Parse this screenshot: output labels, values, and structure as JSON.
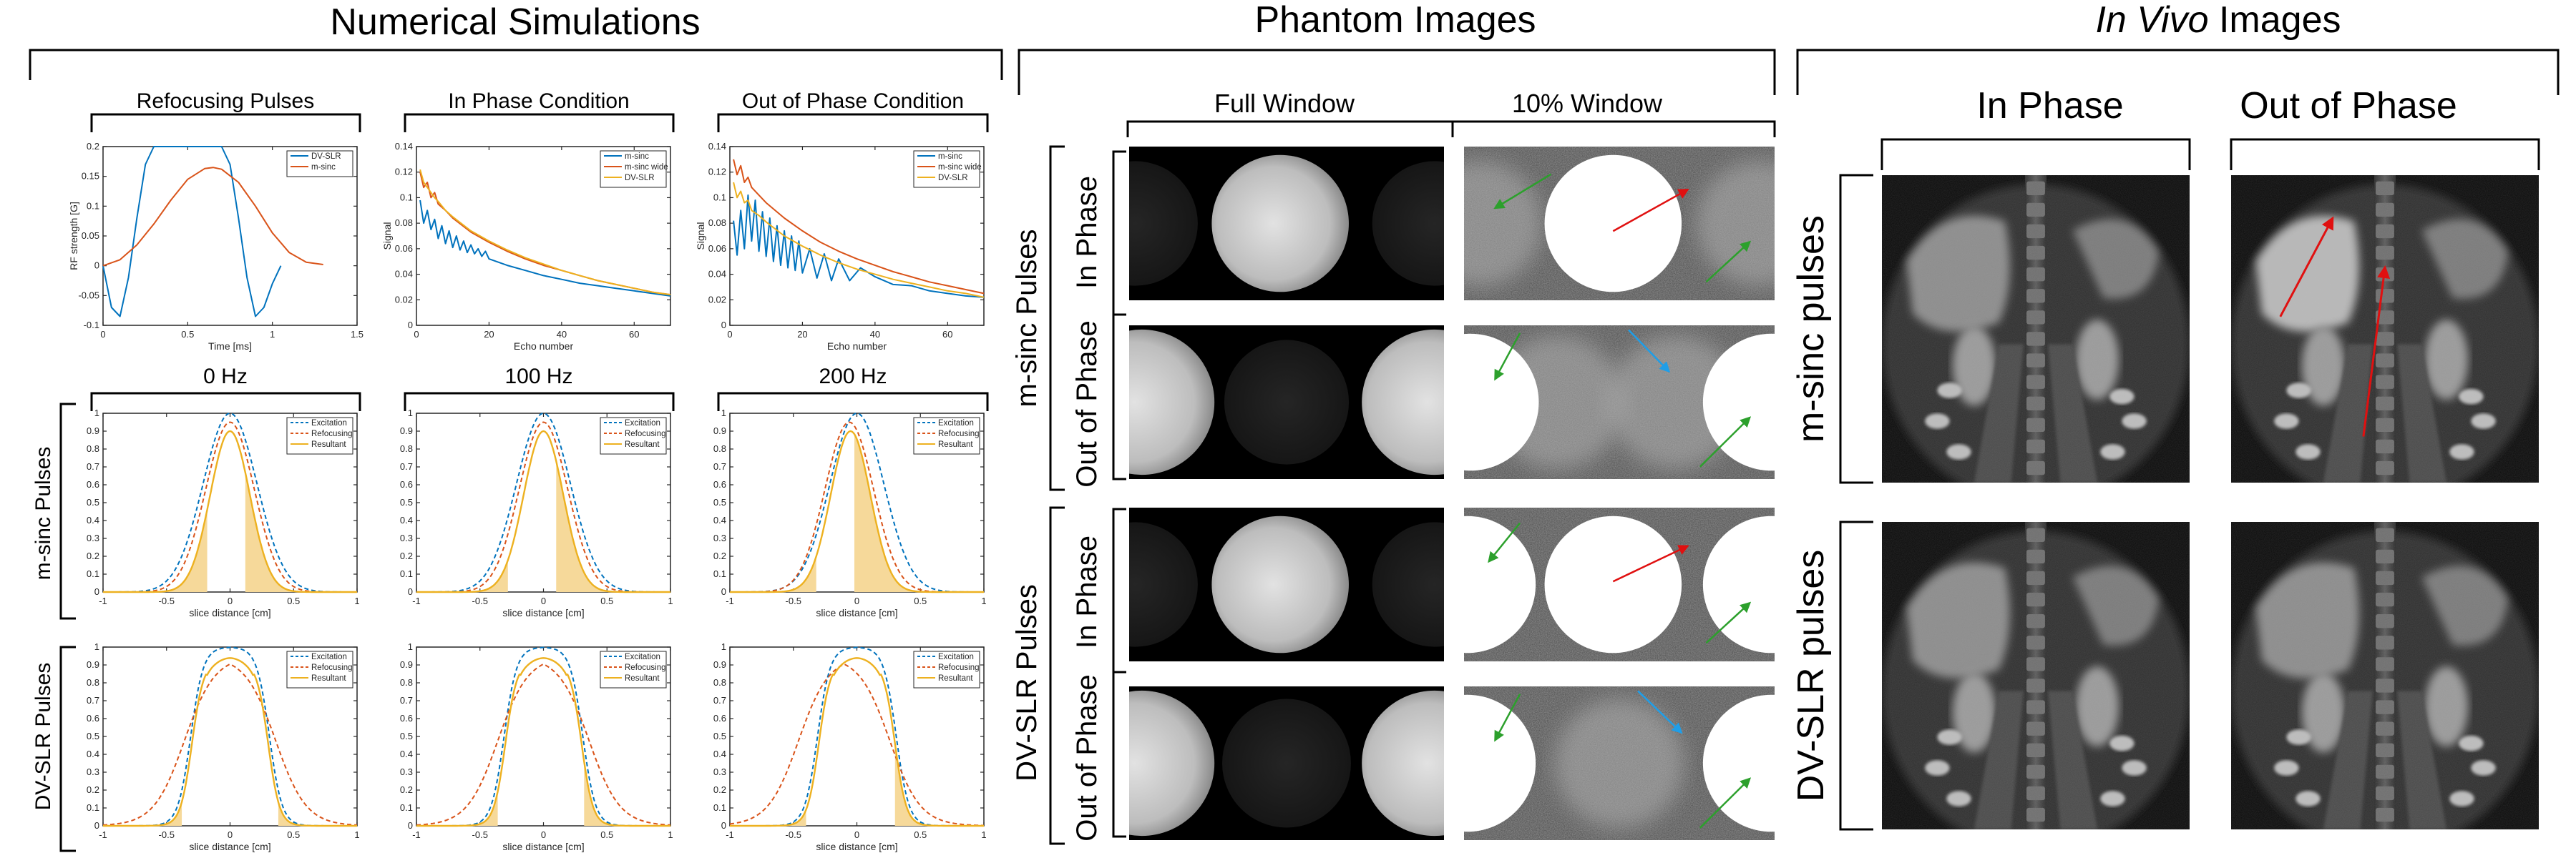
{
  "headers": {
    "numerical": "Numerical Simulations",
    "phantom": "Phantom Images",
    "invivo_italic": "In Vivo",
    "invivo_rest": " Images"
  },
  "sim": {
    "top_titles": [
      "Refocusing Pulses",
      "In Phase Condition",
      "Out of Phase Condition"
    ],
    "freq_titles": [
      "0 Hz",
      "100 Hz",
      "200 Hz"
    ],
    "row_labels": [
      "m-sinc Pulses",
      "DV-SLR Pulses"
    ]
  },
  "phantom": {
    "col_labels": [
      "Full Window",
      "10% Window"
    ],
    "group_labels": [
      "m-sinc Pulses",
      "DV-SLR Pulses"
    ],
    "sub_labels": [
      "In Phase",
      "Out of Phase",
      "In Phase",
      "Out of Phase"
    ]
  },
  "invivo": {
    "col_labels": [
      "In Phase",
      "Out of Phase"
    ],
    "row_labels": [
      "m-sinc pulses",
      "DV-SLR pulses"
    ]
  },
  "colors": {
    "blue": "#0072bd",
    "orange": "#d95319",
    "yellow": "#edb120",
    "fill": "#f6d99a",
    "green": "#2ca02c",
    "red": "#e01010",
    "cyan": "#1f9ee8"
  },
  "chart_data": [
    {
      "type": "line",
      "title": "Refocusing Pulses",
      "xlabel": "Time [ms]",
      "ylabel": "RF strength [G]",
      "xlim": [
        0,
        1.5
      ],
      "ylim": [
        -0.1,
        0.2
      ],
      "xticks": [
        0,
        0.5,
        1,
        1.5
      ],
      "yticks": [
        -0.1,
        -0.05,
        0,
        0.05,
        0.1,
        0.15,
        0.2
      ],
      "xtick_labels": [
        "0",
        "0.5",
        "1",
        "1.5"
      ],
      "ytick_labels": [
        "-0.1",
        "-0.05",
        "0",
        "0.05",
        "0.1",
        "0.15",
        "0.2"
      ],
      "legend": [
        "DV-SLR",
        "m-sinc"
      ],
      "legend_position": "top-right",
      "series": [
        {
          "name": "DV-SLR",
          "color": "#0072bd",
          "x": [
            0,
            0.05,
            0.1,
            0.15,
            0.2,
            0.25,
            0.3,
            0.4,
            0.5,
            0.6,
            0.7,
            0.75,
            0.8,
            0.85,
            0.9,
            0.95,
            1.0,
            1.05
          ],
          "y": [
            0,
            -0.07,
            -0.085,
            -0.02,
            0.08,
            0.17,
            0.2,
            0.2,
            0.2,
            0.2,
            0.2,
            0.17,
            0.08,
            -0.02,
            -0.085,
            -0.07,
            -0.03,
            0
          ]
        },
        {
          "name": "m-sinc",
          "color": "#d95319",
          "x": [
            0,
            0.1,
            0.2,
            0.3,
            0.4,
            0.5,
            0.6,
            0.65,
            0.7,
            0.8,
            0.9,
            1.0,
            1.1,
            1.2,
            1.3
          ],
          "y": [
            0,
            0.01,
            0.035,
            0.07,
            0.11,
            0.145,
            0.163,
            0.165,
            0.162,
            0.14,
            0.1,
            0.055,
            0.022,
            0.006,
            0.002
          ]
        }
      ]
    },
    {
      "type": "line",
      "title": "In Phase Condition",
      "xlabel": "Echo number",
      "ylabel": "Signal",
      "xlim": [
        0,
        70
      ],
      "ylim": [
        0,
        0.14
      ],
      "xticks": [
        0,
        20,
        40,
        60
      ],
      "yticks": [
        0,
        0.02,
        0.04,
        0.06,
        0.08,
        0.1,
        0.12,
        0.14
      ],
      "xtick_labels": [
        "0",
        "20",
        "40",
        "60"
      ],
      "ytick_labels": [
        "0",
        "0.02",
        "0.04",
        "0.06",
        "0.08",
        "0.1",
        "0.12",
        "0.14"
      ],
      "legend": [
        "m-sinc",
        "m-sinc wide",
        "DV-SLR"
      ],
      "legend_position": "top-right",
      "series": [
        {
          "name": "m-sinc",
          "color": "#0072bd",
          "x": [
            1,
            2,
            3,
            4,
            5,
            6,
            7,
            8,
            9,
            10,
            11,
            12,
            13,
            14,
            15,
            16,
            17,
            18,
            19,
            20,
            25,
            30,
            35,
            40,
            45,
            50,
            55,
            60,
            65,
            70
          ],
          "y": [
            0.098,
            0.08,
            0.09,
            0.075,
            0.083,
            0.068,
            0.078,
            0.064,
            0.074,
            0.061,
            0.07,
            0.059,
            0.066,
            0.057,
            0.063,
            0.056,
            0.06,
            0.054,
            0.058,
            0.052,
            0.047,
            0.043,
            0.039,
            0.036,
            0.033,
            0.031,
            0.029,
            0.027,
            0.025,
            0.023
          ]
        },
        {
          "name": "m-sinc wide",
          "color": "#d95319",
          "x": [
            1,
            2,
            3,
            4,
            5,
            6,
            8,
            10,
            15,
            20,
            25,
            30,
            35,
            40,
            45,
            50,
            55,
            60,
            65,
            70
          ],
          "y": [
            0.12,
            0.108,
            0.112,
            0.1,
            0.104,
            0.095,
            0.09,
            0.084,
            0.073,
            0.065,
            0.058,
            0.052,
            0.047,
            0.043,
            0.039,
            0.035,
            0.032,
            0.029,
            0.026,
            0.024
          ]
        },
        {
          "name": "DV-SLR",
          "color": "#edb120",
          "x": [
            1,
            2,
            3,
            4,
            5,
            6,
            8,
            10,
            15,
            20,
            25,
            30,
            35,
            40,
            45,
            50,
            55,
            60,
            65,
            70
          ],
          "y": [
            0.122,
            0.112,
            0.108,
            0.104,
            0.1,
            0.097,
            0.09,
            0.085,
            0.074,
            0.066,
            0.059,
            0.053,
            0.048,
            0.043,
            0.039,
            0.035,
            0.032,
            0.029,
            0.026,
            0.024
          ]
        }
      ]
    },
    {
      "type": "line",
      "title": "Out of Phase Condition",
      "xlabel": "Echo number",
      "ylabel": "Signal",
      "xlim": [
        0,
        70
      ],
      "ylim": [
        0,
        0.14
      ],
      "xticks": [
        0,
        20,
        40,
        60
      ],
      "yticks": [
        0,
        0.02,
        0.04,
        0.06,
        0.08,
        0.1,
        0.12,
        0.14
      ],
      "xtick_labels": [
        "0",
        "20",
        "40",
        "60"
      ],
      "ytick_labels": [
        "0",
        "0.02",
        "0.04",
        "0.06",
        "0.08",
        "0.1",
        "0.12",
        "0.14"
      ],
      "legend": [
        "m-sinc",
        "m-sinc wide",
        "DV-SLR"
      ],
      "legend_position": "top-right",
      "series": [
        {
          "name": "m-sinc",
          "color": "#0072bd",
          "x": [
            1,
            2,
            3,
            4,
            5,
            6,
            7,
            8,
            9,
            10,
            11,
            12,
            13,
            14,
            15,
            16,
            17,
            18,
            19,
            20,
            22,
            24,
            26,
            28,
            30,
            33,
            36,
            40,
            45,
            50,
            55,
            60,
            65,
            70
          ],
          "y": [
            0.082,
            0.055,
            0.09,
            0.06,
            0.102,
            0.066,
            0.098,
            0.058,
            0.089,
            0.054,
            0.084,
            0.05,
            0.078,
            0.047,
            0.074,
            0.045,
            0.07,
            0.043,
            0.066,
            0.041,
            0.06,
            0.037,
            0.056,
            0.035,
            0.052,
            0.035,
            0.045,
            0.038,
            0.032,
            0.031,
            0.027,
            0.025,
            0.023,
            0.022
          ]
        },
        {
          "name": "m-sinc wide",
          "color": "#d95319",
          "x": [
            1,
            2,
            3,
            4,
            5,
            6,
            8,
            10,
            15,
            20,
            25,
            30,
            35,
            40,
            45,
            50,
            55,
            60,
            65,
            70
          ],
          "y": [
            0.13,
            0.118,
            0.125,
            0.112,
            0.116,
            0.108,
            0.102,
            0.096,
            0.084,
            0.074,
            0.065,
            0.058,
            0.052,
            0.047,
            0.042,
            0.038,
            0.034,
            0.031,
            0.028,
            0.025
          ]
        },
        {
          "name": "DV-SLR",
          "color": "#edb120",
          "x": [
            1,
            2,
            3,
            4,
            5,
            6,
            8,
            10,
            15,
            20,
            25,
            30,
            35,
            40,
            45,
            50,
            55,
            60,
            65,
            70
          ],
          "y": [
            0.112,
            0.1,
            0.105,
            0.096,
            0.098,
            0.09,
            0.086,
            0.081,
            0.07,
            0.062,
            0.055,
            0.049,
            0.044,
            0.04,
            0.036,
            0.033,
            0.03,
            0.027,
            0.025,
            0.022
          ]
        }
      ]
    },
    {
      "type": "line",
      "title": "0 Hz",
      "pulse": "m-sinc",
      "xlabel": "slice distance [cm]",
      "ylabel": "",
      "xlim": [
        -1,
        1
      ],
      "ylim": [
        0,
        1
      ],
      "xticks": [
        -1,
        -0.5,
        0,
        0.5,
        1
      ],
      "yticks": [
        0,
        0.1,
        0.2,
        0.3,
        0.4,
        0.5,
        0.6,
        0.7,
        0.8,
        0.9,
        1
      ],
      "xtick_labels": [
        "-1",
        "-0.5",
        "0",
        "0.5",
        "1"
      ],
      "ytick_labels": [
        "0",
        "0.1",
        "0.2",
        "0.3",
        "0.4",
        "0.5",
        "0.6",
        "0.7",
        "0.8",
        "0.9",
        "1"
      ],
      "legend": [
        "Excitation",
        "Refocusing",
        "Resultant"
      ],
      "legend_position": "top-right",
      "profiles": {
        "excitation": {
          "shape": "gauss",
          "center": 0,
          "width": 0.3,
          "peak": 1.0
        },
        "refocusing": {
          "shape": "gauss",
          "center": 0,
          "width": 0.27,
          "peak": 0.95
        },
        "resultant": {
          "shape": "gauss",
          "center": 0,
          "width": 0.22,
          "peak": 0.9
        }
      },
      "shaded_x": [
        [
          -0.6,
          -0.18
        ],
        [
          0.12,
          0.6
        ]
      ]
    },
    {
      "type": "line",
      "title": "100 Hz",
      "pulse": "m-sinc",
      "xlabel": "slice distance [cm]",
      "ylabel": "",
      "xlim": [
        -1,
        1
      ],
      "ylim": [
        0,
        1
      ],
      "xticks": [
        -1,
        -0.5,
        0,
        0.5,
        1
      ],
      "yticks": [
        0,
        0.1,
        0.2,
        0.3,
        0.4,
        0.5,
        0.6,
        0.7,
        0.8,
        0.9,
        1
      ],
      "xtick_labels": [
        "-1",
        "-0.5",
        "0",
        "0.5",
        "1"
      ],
      "ytick_labels": [
        "0",
        "0.1",
        "0.2",
        "0.3",
        "0.4",
        "0.5",
        "0.6",
        "0.7",
        "0.8",
        "0.9",
        "1"
      ],
      "legend": [
        "Excitation",
        "Refocusing",
        "Resultant"
      ],
      "legend_position": "top-right",
      "profiles": {
        "excitation": {
          "shape": "gauss",
          "center": 0,
          "width": 0.3,
          "peak": 1.0
        },
        "refocusing": {
          "shape": "gauss",
          "center": 0,
          "width": 0.27,
          "peak": 0.95
        },
        "resultant": {
          "shape": "gauss",
          "center": 0,
          "width": 0.22,
          "peak": 0.9
        }
      },
      "shaded_x": [
        [
          -0.6,
          -0.28
        ],
        [
          0.1,
          0.6
        ]
      ]
    },
    {
      "type": "line",
      "title": "200 Hz",
      "pulse": "m-sinc",
      "xlabel": "slice distance [cm]",
      "ylabel": "",
      "xlim": [
        -1,
        1
      ],
      "ylim": [
        0,
        1
      ],
      "xticks": [
        -1,
        -0.5,
        0,
        0.5,
        1
      ],
      "yticks": [
        0,
        0.1,
        0.2,
        0.3,
        0.4,
        0.5,
        0.6,
        0.7,
        0.8,
        0.9,
        1
      ],
      "xtick_labels": [
        "-1",
        "-0.5",
        "0",
        "0.5",
        "1"
      ],
      "ytick_labels": [
        "0",
        "0.1",
        "0.2",
        "0.3",
        "0.4",
        "0.5",
        "0.6",
        "0.7",
        "0.8",
        "0.9",
        "1"
      ],
      "legend": [
        "Excitation",
        "Refocusing",
        "Resultant"
      ],
      "legend_position": "top-right",
      "profiles": {
        "excitation": {
          "shape": "gauss",
          "center": 0,
          "width": 0.3,
          "peak": 1.0
        },
        "refocusing": {
          "shape": "gauss",
          "center": -0.06,
          "width": 0.27,
          "peak": 0.95
        },
        "resultant": {
          "shape": "gauss",
          "center": -0.05,
          "width": 0.22,
          "peak": 0.9
        }
      },
      "shaded_x": [
        [
          -0.6,
          -0.32
        ],
        [
          -0.02,
          0.6
        ]
      ]
    },
    {
      "type": "line",
      "title": "0 Hz",
      "pulse": "DV-SLR",
      "xlabel": "slice distance [cm]",
      "ylabel": "",
      "xlim": [
        -1,
        1
      ],
      "ylim": [
        0,
        1
      ],
      "xticks": [
        -1,
        -0.5,
        0,
        0.5,
        1
      ],
      "yticks": [
        0,
        0.1,
        0.2,
        0.3,
        0.4,
        0.5,
        0.6,
        0.7,
        0.8,
        0.9,
        1
      ],
      "xtick_labels": [
        "-1",
        "-0.5",
        "0",
        "0.5",
        "1"
      ],
      "ytick_labels": [
        "0",
        "0.1",
        "0.2",
        "0.3",
        "0.4",
        "0.5",
        "0.6",
        "0.7",
        "0.8",
        "0.9",
        "1"
      ],
      "legend": [
        "Excitation",
        "Refocusing",
        "Resultant"
      ],
      "legend_position": "top-right",
      "profiles": {
        "excitation": {
          "shape": "flat",
          "center": 0,
          "width": 0.31,
          "edge": 0.05,
          "peak": 1.0
        },
        "refocusing": {
          "shape": "flat",
          "center": 0,
          "width": 0.36,
          "edge": 0.12,
          "peak": 0.95
        },
        "resultant": {
          "shape": "flat",
          "center": 0,
          "width": 0.3,
          "edge": 0.045,
          "peak": 0.92
        }
      },
      "shaded_x": [
        [
          -0.6,
          -0.38
        ],
        [
          0.38,
          0.6
        ]
      ]
    },
    {
      "type": "line",
      "title": "100 Hz",
      "pulse": "DV-SLR",
      "xlabel": "slice distance [cm]",
      "ylabel": "",
      "xlim": [
        -1,
        1
      ],
      "ylim": [
        0,
        1
      ],
      "xticks": [
        -1,
        -0.5,
        0,
        0.5,
        1
      ],
      "yticks": [
        0,
        0.1,
        0.2,
        0.3,
        0.4,
        0.5,
        0.6,
        0.7,
        0.8,
        0.9,
        1
      ],
      "xtick_labels": [
        "-1",
        "-0.5",
        "0",
        "0.5",
        "1"
      ],
      "ytick_labels": [
        "0",
        "0.1",
        "0.2",
        "0.3",
        "0.4",
        "0.5",
        "0.6",
        "0.7",
        "0.8",
        "0.9",
        "1"
      ],
      "legend": [
        "Excitation",
        "Refocusing",
        "Resultant"
      ],
      "legend_position": "top-right",
      "profiles": {
        "excitation": {
          "shape": "flat",
          "center": 0,
          "width": 0.31,
          "edge": 0.05,
          "peak": 1.0
        },
        "refocusing": {
          "shape": "flat",
          "center": 0,
          "width": 0.36,
          "edge": 0.12,
          "peak": 0.95
        },
        "resultant": {
          "shape": "flat",
          "center": 0,
          "width": 0.3,
          "edge": 0.045,
          "peak": 0.92
        }
      },
      "shaded_x": [
        [
          -0.6,
          -0.36
        ],
        [
          0.32,
          0.6
        ]
      ]
    },
    {
      "type": "line",
      "title": "200 Hz",
      "pulse": "DV-SLR",
      "xlabel": "slice distance [cm]",
      "ylabel": "",
      "xlim": [
        -1,
        1
      ],
      "ylim": [
        0,
        1
      ],
      "xticks": [
        -1,
        -0.5,
        0,
        0.5,
        1
      ],
      "yticks": [
        0,
        0.1,
        0.2,
        0.3,
        0.4,
        0.5,
        0.6,
        0.7,
        0.8,
        0.9,
        1
      ],
      "xtick_labels": [
        "-1",
        "-0.5",
        "0",
        "0.5",
        "1"
      ],
      "ytick_labels": [
        "0",
        "0.1",
        "0.2",
        "0.3",
        "0.4",
        "0.5",
        "0.6",
        "0.7",
        "0.8",
        "0.9",
        "1"
      ],
      "legend": [
        "Excitation",
        "Refocusing",
        "Resultant"
      ],
      "legend_position": "top-right",
      "profiles": {
        "excitation": {
          "shape": "flat",
          "center": 0,
          "width": 0.31,
          "edge": 0.05,
          "peak": 1.0
        },
        "refocusing": {
          "shape": "flat",
          "center": -0.1,
          "width": 0.36,
          "edge": 0.12,
          "peak": 0.95
        },
        "resultant": {
          "shape": "flat",
          "center": 0,
          "width": 0.3,
          "edge": 0.045,
          "peak": 0.92
        }
      },
      "shaded_x": [
        [
          -0.6,
          -0.4
        ],
        [
          0.3,
          0.6
        ]
      ]
    }
  ]
}
